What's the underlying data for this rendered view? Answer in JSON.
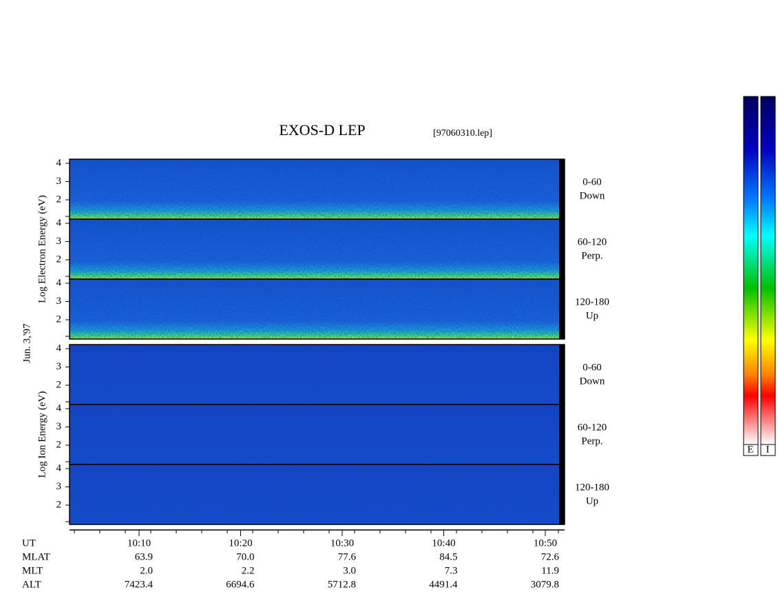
{
  "title": "EXOS-D LEP",
  "file": "[97060310.lep]",
  "date_label": "Jun. 3,'97",
  "yticks": [
    2,
    3,
    4
  ],
  "electron": {
    "ylabel": "Log  Electron  Energy (eV)",
    "panels": [
      {
        "angle": "0-60",
        "direction": "Down"
      },
      {
        "angle": "60-120",
        "direction": "Perp."
      },
      {
        "angle": "120-180",
        "direction": "Up"
      }
    ]
  },
  "ion": {
    "ylabel": "Log  Ion  Energy (eV)",
    "panels": [
      {
        "angle": "0-60",
        "direction": "Down"
      },
      {
        "angle": "60-120",
        "direction": "Perp."
      },
      {
        "angle": "120-180",
        "direction": "Up"
      }
    ]
  },
  "xaxis": {
    "rows": [
      {
        "name": "UT",
        "values": [
          "10:10",
          "10:20",
          "10:30",
          "10:40",
          "10:50"
        ]
      },
      {
        "name": "MLAT",
        "values": [
          "63.9",
          "70.0",
          "77.6",
          "84.5",
          "72.6"
        ]
      },
      {
        "name": "MLT",
        "values": [
          "2.0",
          "2.2",
          "3.0",
          "7.3",
          "11.9"
        ]
      },
      {
        "name": "ALT",
        "values": [
          "7423.4",
          "6694.6",
          "5712.8",
          "4491.4",
          "3079.8"
        ]
      }
    ]
  },
  "colorbar_labels": [
    "E",
    "I"
  ]
}
